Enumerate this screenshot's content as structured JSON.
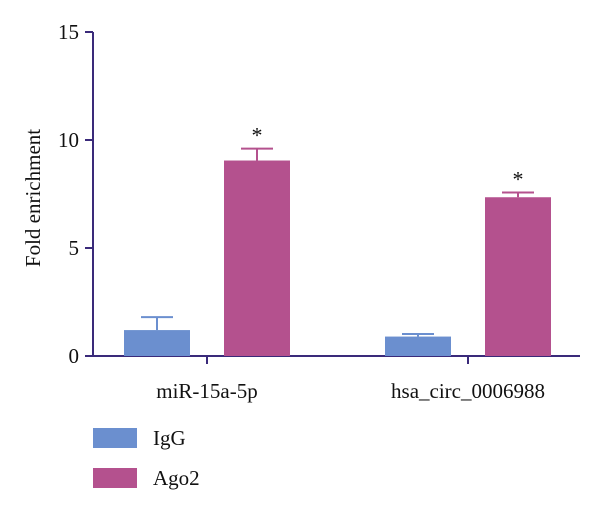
{
  "chart_data": {
    "type": "bar",
    "ylabel": "Fold enrichment",
    "xlabel": "",
    "ylim": [
      0,
      15
    ],
    "yticks": [
      0,
      5,
      10,
      15
    ],
    "categories": [
      "miR-15a-5p",
      "hsa_circ_0006988"
    ],
    "series": [
      {
        "name": "IgG",
        "color": "#6b8fcf",
        "values": [
          1.2,
          0.9
        ],
        "errors": [
          0.6,
          0.12
        ],
        "significance": [
          "",
          ""
        ]
      },
      {
        "name": "Ago2",
        "color": "#b4518e",
        "values": [
          9.05,
          7.35
        ],
        "errors": [
          0.55,
          0.22
        ],
        "significance": [
          "*",
          "*"
        ]
      }
    ],
    "legend": "bottom-left",
    "grid": false
  },
  "colors": {
    "axis": "#3a2a7a"
  }
}
